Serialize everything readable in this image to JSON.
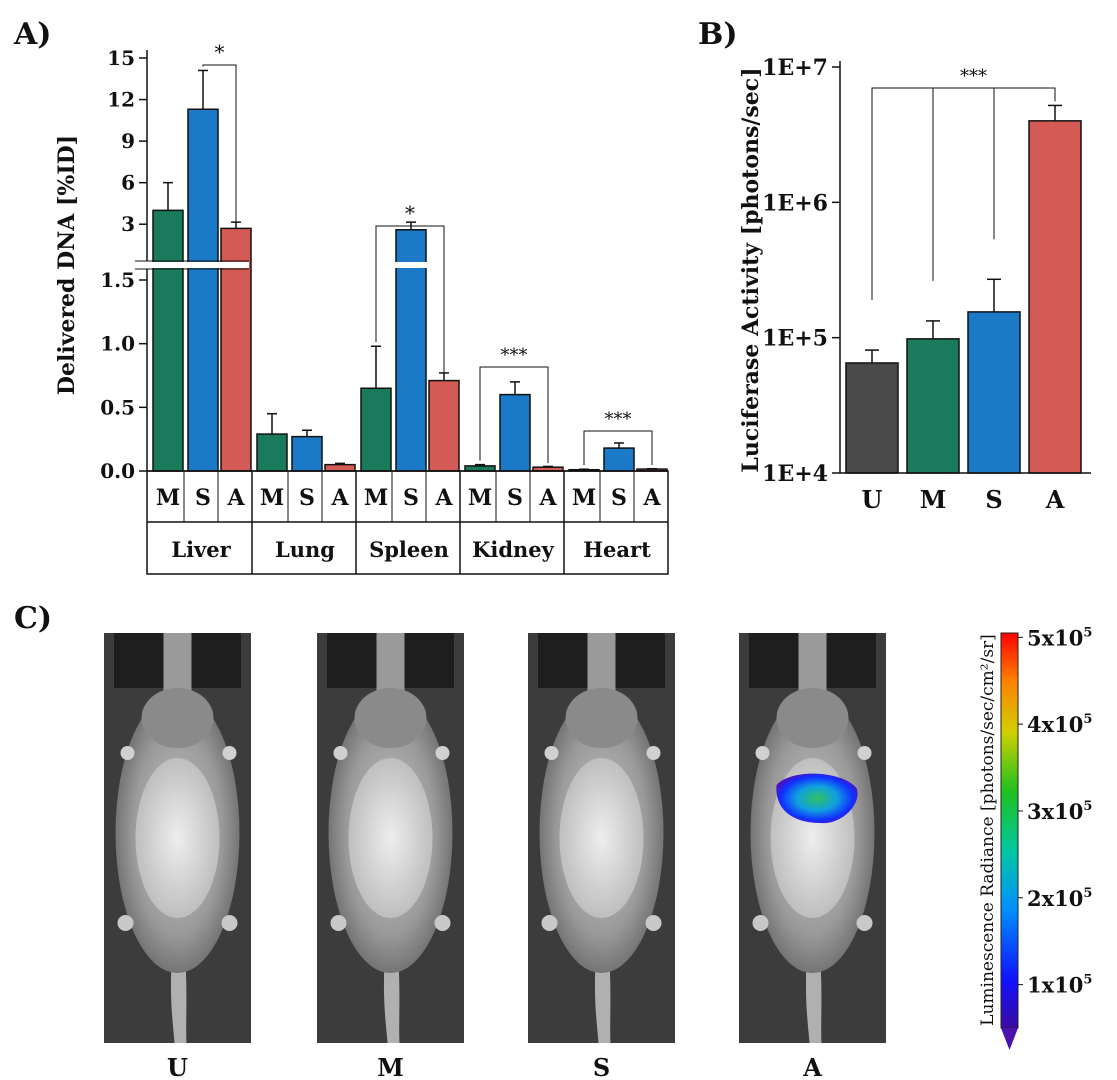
{
  "colors": {
    "U": "#4a4a4a",
    "M": "#1a7a5c",
    "S": "#1a7ac8",
    "A": "#d45a55",
    "axis": "#111111"
  },
  "chart_data": [
    {
      "panel": "A)",
      "type": "bar",
      "ylabel": "Delivered DNA [%ID]",
      "yticks_lower": [
        "0.0",
        "0.5",
        "1.0",
        "1.5"
      ],
      "yticks_upper": [
        "3",
        "6",
        "9",
        "12",
        "15"
      ],
      "ylim_lower": [
        0,
        1.5
      ],
      "ylim_upper": [
        1.5,
        15
      ],
      "groups": [
        "Liver",
        "Lung",
        "Spleen",
        "Kidney",
        "Heart"
      ],
      "formulations": [
        "M",
        "S",
        "A"
      ],
      "series": [
        {
          "name": "M",
          "values": [
            4.0,
            0.29,
            0.65,
            0.04,
            0.01
          ],
          "errors": [
            2.0,
            0.16,
            0.33,
            0.01,
            0.004
          ]
        },
        {
          "name": "S",
          "values": [
            11.3,
            0.27,
            2.6,
            0.6,
            0.18
          ],
          "errors": [
            2.8,
            0.05,
            0.55,
            0.1,
            0.04
          ]
        },
        {
          "name": "A",
          "values": [
            2.7,
            0.05,
            0.71,
            0.03,
            0.015
          ],
          "errors": [
            0.45,
            0.01,
            0.06,
            0.006,
            0.003
          ]
        }
      ],
      "significance": [
        {
          "group": "Liver",
          "label": "*"
        },
        {
          "group": "Spleen",
          "label": "*"
        },
        {
          "group": "Kidney",
          "label": "***"
        },
        {
          "group": "Heart",
          "label": "***"
        }
      ]
    },
    {
      "panel": "B)",
      "type": "bar",
      "yscale": "log",
      "ylabel": "Luciferase Activity [photons/sec]",
      "ylim": [
        10000,
        10000000
      ],
      "yticks": [
        "1E+4",
        "1E+5",
        "1E+6",
        "1E+7"
      ],
      "categories": [
        "U",
        "M",
        "S",
        "A"
      ],
      "values": [
        65000,
        98000,
        155000,
        4000000
      ],
      "errors": [
        16000,
        35000,
        115000,
        1200000
      ],
      "significance": "***"
    },
    {
      "panel": "C)",
      "type": "image-panel",
      "images": [
        "U",
        "M",
        "S",
        "A"
      ],
      "colorbar_label": "Luminescence Radiance [photons/sec/cm²/sr]",
      "colorbar_ticks": [
        {
          "value": 500000,
          "base": "5x10",
          "exp": "5"
        },
        {
          "value": 400000,
          "base": "4x10",
          "exp": "5"
        },
        {
          "value": 300000,
          "base": "3x10",
          "exp": "5"
        },
        {
          "value": 200000,
          "base": "2x10",
          "exp": "5"
        },
        {
          "value": 100000,
          "base": "1x10",
          "exp": "5"
        }
      ]
    }
  ]
}
